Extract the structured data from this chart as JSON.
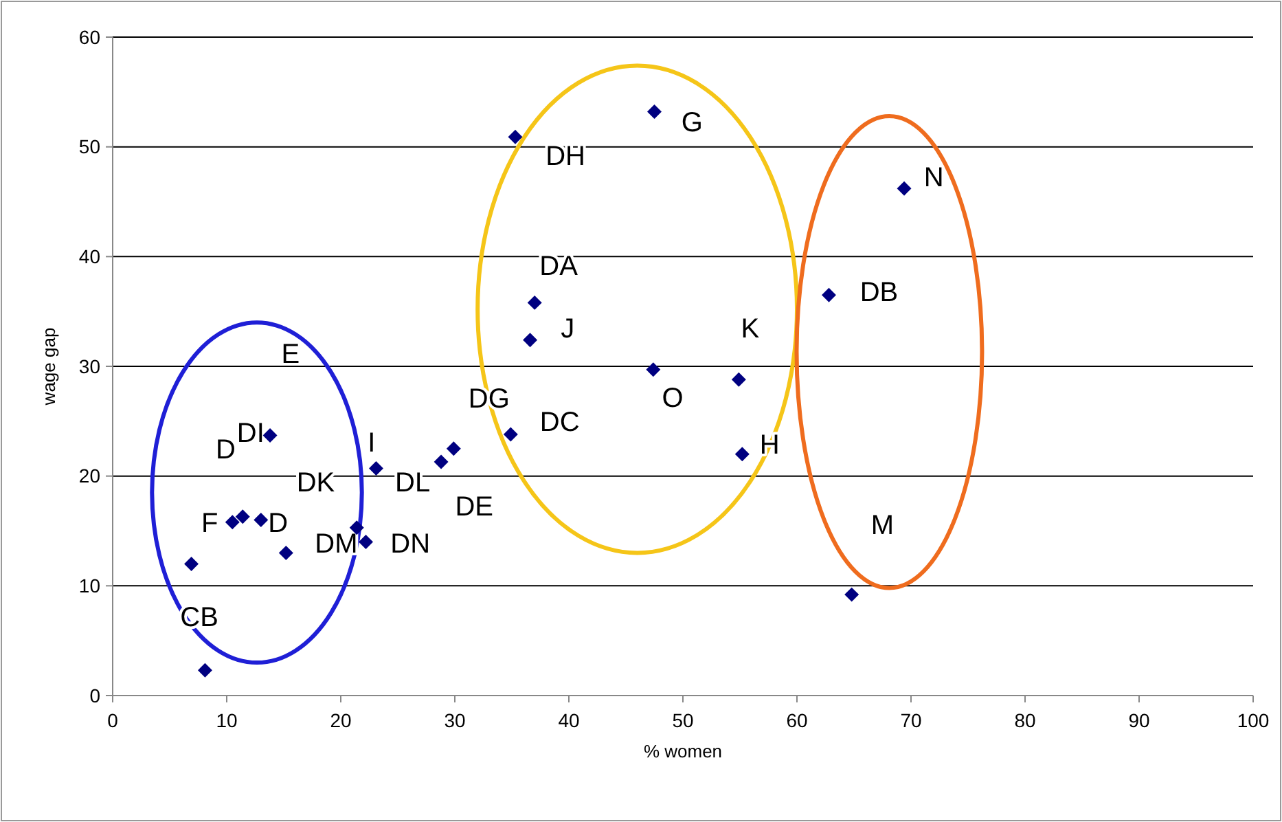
{
  "chart_data": {
    "type": "scatter",
    "xlabel": "% women",
    "ylabel": "wage gap",
    "xlim": [
      0,
      100
    ],
    "ylim": [
      0,
      60
    ],
    "xticks": [
      0,
      10,
      20,
      30,
      40,
      50,
      60,
      70,
      80,
      90,
      100
    ],
    "yticks": [
      0,
      10,
      20,
      30,
      40,
      50,
      60
    ],
    "grid": "y",
    "marker": "diamond",
    "series": [
      {
        "color": "#000080",
        "x": [
          6.9,
          8.1,
          10.5,
          11.4,
          13.0,
          13.8,
          15.2,
          21.4,
          22.2,
          23.1,
          28.8,
          29.9,
          34.9,
          35.3,
          47.5,
          37.0,
          36.6,
          47.4,
          54.9,
          55.2,
          69.4,
          62.8,
          64.8
        ],
        "values": [
          12.0,
          2.3,
          15.8,
          16.3,
          16.0,
          23.7,
          13.0,
          15.3,
          14.0,
          20.7,
          21.3,
          22.5,
          23.8,
          50.9,
          53.2,
          35.8,
          32.4,
          29.7,
          28.8,
          22.0,
          46.2,
          36.5,
          9.2
        ]
      }
    ],
    "annotations": [
      "E",
      "D",
      "DI",
      "DK",
      "I",
      "DL",
      "DE",
      "DG",
      "F",
      "D",
      "DM",
      "DN",
      "CB",
      "DH",
      "G",
      "DA",
      "J",
      "K",
      "O",
      "DC",
      "H",
      "N",
      "DB",
      "M"
    ]
  }
}
